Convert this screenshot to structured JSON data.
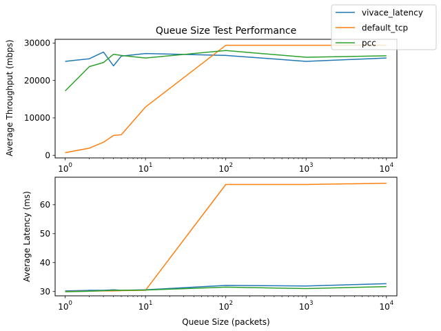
{
  "chart_data": [
    {
      "type": "line",
      "title": "Queue Size Test Performance",
      "xlabel": "",
      "ylabel": "Average Throughput (mbps)",
      "xscale": "log",
      "xlim": [
        0.75,
        13500
      ],
      "ylim": [
        -700,
        31000
      ],
      "xticks": [
        {
          "value": 1,
          "base": "10",
          "exp": "0"
        },
        {
          "value": 10,
          "base": "10",
          "exp": "1"
        },
        {
          "value": 100,
          "base": "10",
          "exp": "2"
        },
        {
          "value": 1000,
          "base": "10",
          "exp": "3"
        },
        {
          "value": 10000,
          "base": "10",
          "exp": "4"
        }
      ],
      "yticks": [
        {
          "value": 0,
          "label": "0"
        },
        {
          "value": 10000,
          "label": "10000"
        },
        {
          "value": 20000,
          "label": "20000"
        },
        {
          "value": 30000,
          "label": "30000"
        }
      ],
      "grid": false,
      "x": [
        1,
        2,
        3,
        4,
        5,
        10,
        100,
        1000,
        10000
      ],
      "series": [
        {
          "name": "vivace_latency",
          "color": "#1f77b4",
          "values": [
            25100,
            25800,
            27600,
            23900,
            26500,
            27200,
            26700,
            25100,
            26000
          ]
        },
        {
          "name": "default_tcp",
          "color": "#ff7f0e",
          "values": [
            700,
            1900,
            3500,
            5300,
            5500,
            12900,
            29400,
            29400,
            29400
          ]
        },
        {
          "name": "pcc",
          "color": "#2ca02c",
          "values": [
            17200,
            23700,
            24800,
            27000,
            26700,
            26000,
            28000,
            26200,
            26600
          ]
        }
      ]
    },
    {
      "type": "line",
      "title": "",
      "xlabel": "Queue Size (packets)",
      "ylabel": "Average Latency (ms)",
      "xscale": "log",
      "xlim": [
        0.75,
        13500
      ],
      "ylim": [
        28.5,
        69.5
      ],
      "xticks": [
        {
          "value": 1,
          "base": "10",
          "exp": "0"
        },
        {
          "value": 10,
          "base": "10",
          "exp": "1"
        },
        {
          "value": 100,
          "base": "10",
          "exp": "2"
        },
        {
          "value": 1000,
          "base": "10",
          "exp": "3"
        },
        {
          "value": 10000,
          "base": "10",
          "exp": "4"
        }
      ],
      "yticks": [
        {
          "value": 30,
          "label": "30"
        },
        {
          "value": 40,
          "label": "40"
        },
        {
          "value": 50,
          "label": "50"
        },
        {
          "value": 60,
          "label": "60"
        }
      ],
      "grid": false,
      "x": [
        1,
        2,
        3,
        4,
        5,
        10,
        100,
        1000,
        10000
      ],
      "series": [
        {
          "name": "vivace_latency",
          "color": "#1f77b4",
          "values": [
            30.2,
            30.4,
            30.4,
            30.6,
            30.4,
            30.6,
            32.1,
            31.9,
            32.7
          ]
        },
        {
          "name": "default_tcp",
          "color": "#ff7f0e",
          "values": [
            30.0,
            30.1,
            30.2,
            30.2,
            30.3,
            30.4,
            67.0,
            67.0,
            67.4
          ]
        },
        {
          "name": "pcc",
          "color": "#2ca02c",
          "values": [
            29.9,
            30.1,
            30.3,
            30.4,
            30.4,
            30.5,
            31.5,
            31.0,
            31.7
          ]
        }
      ]
    }
  ],
  "legend": {
    "placement": "top-right",
    "entries": [
      {
        "label": "vivace_latency",
        "color": "#1f77b4"
      },
      {
        "label": "default_tcp",
        "color": "#ff7f0e"
      },
      {
        "label": "pcc",
        "color": "#2ca02c"
      }
    ]
  }
}
